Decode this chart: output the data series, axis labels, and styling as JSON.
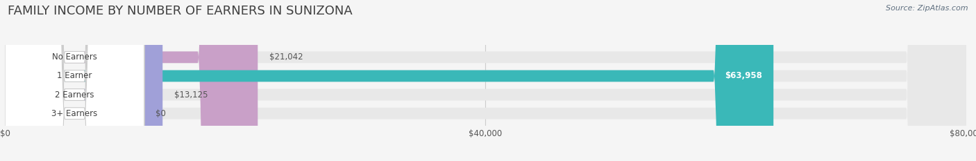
{
  "title": "FAMILY INCOME BY NUMBER OF EARNERS IN SUNIZONA",
  "source": "Source: ZipAtlas.com",
  "categories": [
    "No Earners",
    "1 Earner",
    "2 Earners",
    "3+ Earners"
  ],
  "values": [
    21042,
    63958,
    13125,
    0
  ],
  "bar_colors": [
    "#c9a0c8",
    "#3ab8b8",
    "#a0a0d8",
    "#f4a0b8"
  ],
  "label_colors": [
    "#555555",
    "#ffffff",
    "#555555",
    "#555555"
  ],
  "value_labels": [
    "$21,042",
    "$63,958",
    "$13,125",
    "$0"
  ],
  "xlim": [
    0,
    80000
  ],
  "xticks": [
    0,
    40000,
    80000
  ],
  "xticklabels": [
    "$0",
    "$40,000",
    "$80,000"
  ],
  "background_color": "#f5f5f5",
  "bar_bg_color": "#e8e8e8",
  "title_fontsize": 13,
  "title_color": "#404040",
  "bar_height": 0.62,
  "source_color": "#607080"
}
